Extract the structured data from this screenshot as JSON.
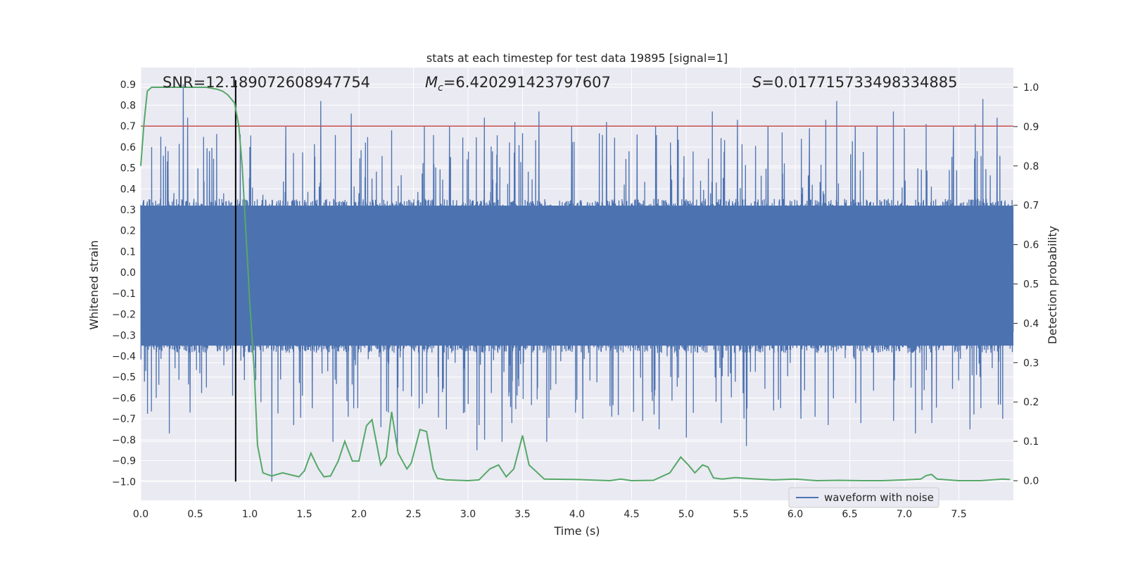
{
  "chart_data": {
    "type": "line",
    "title": "stats at each timestep for test data 19895 [signal=1]",
    "xlabel": "Time (s)",
    "ylabel": "Whitened strain",
    "y2label": "Detection probability",
    "xlim": [
      0.0,
      8.0
    ],
    "ylim": [
      -1.09,
      0.98
    ],
    "y2lim": [
      -0.05,
      1.05
    ],
    "xticks": [
      "0.0",
      "0.5",
      "1.0",
      "1.5",
      "2.0",
      "2.5",
      "3.0",
      "3.5",
      "4.0",
      "4.5",
      "5.0",
      "5.5",
      "6.0",
      "6.5",
      "7.0",
      "7.5"
    ],
    "xtick_values": [
      0.0,
      0.5,
      1.0,
      1.5,
      2.0,
      2.5,
      3.0,
      3.5,
      4.0,
      4.5,
      5.0,
      5.5,
      6.0,
      6.5,
      7.0,
      7.5
    ],
    "yticks": [
      "0.9",
      "0.8",
      "0.7",
      "0.6",
      "0.5",
      "0.4",
      "0.3",
      "0.2",
      "0.1",
      "0.0",
      "−0.1",
      "−0.2",
      "−0.3",
      "−0.4",
      "−0.5",
      "−0.6",
      "−0.7",
      "−0.8",
      "−0.9",
      "−1.0"
    ],
    "ytick_values": [
      0.9,
      0.8,
      0.7,
      0.6,
      0.5,
      0.4,
      0.3,
      0.2,
      0.1,
      0.0,
      -0.1,
      -0.2,
      -0.3,
      -0.4,
      -0.5,
      -0.6,
      -0.7,
      -0.8,
      -0.9,
      -1.0
    ],
    "y2ticks": [
      "1.0",
      "0.9",
      "0.8",
      "0.7",
      "0.6",
      "0.5",
      "0.4",
      "0.3",
      "0.2",
      "0.1",
      "0.0"
    ],
    "y2tick_values": [
      1.0,
      0.9,
      0.8,
      0.7,
      0.6,
      0.5,
      0.4,
      0.3,
      0.2,
      0.1,
      0.0
    ],
    "legend": {
      "placement": "bottom-right",
      "entries": [
        "waveform with noise"
      ]
    },
    "grid": true,
    "annotations": {
      "snr": "SNR=12.189072608947754",
      "mc_symbol": "M",
      "mc_sub": "c",
      "mc_value": "=6.420291423797607",
      "s_symbol": "S",
      "s_value": "=0.017715733498334885"
    },
    "threshold": {
      "y": 0.7,
      "color": "#c44e52"
    },
    "event_time": 0.87,
    "series": [
      {
        "name": "waveform with noise",
        "color": "#4c72b0",
        "axis": "left",
        "description": "whitened strain noise, band roughly -0.35..0.32 with spikes",
        "num_samples": 4000,
        "band": [
          -0.35,
          0.32
        ],
        "peaks": [
          [
            0.39,
            0.9
          ],
          [
            0.43,
            0.74
          ],
          [
            0.1,
            0.6
          ],
          [
            0.25,
            0.58
          ],
          [
            0.63,
            0.58
          ],
          [
            1.0,
            0.6
          ],
          [
            1.65,
            0.82
          ],
          [
            1.33,
            0.7
          ],
          [
            1.93,
            0.76
          ],
          [
            2.3,
            0.68
          ],
          [
            2.6,
            0.7
          ],
          [
            2.83,
            0.7
          ],
          [
            3.15,
            0.74
          ],
          [
            3.43,
            0.72
          ],
          [
            3.65,
            0.77
          ],
          [
            3.95,
            0.7
          ],
          [
            4.27,
            0.72
          ],
          [
            4.55,
            0.66
          ],
          [
            4.72,
            0.7
          ],
          [
            4.92,
            0.7
          ],
          [
            5.24,
            0.77
          ],
          [
            5.47,
            0.73
          ],
          [
            5.75,
            0.7
          ],
          [
            5.88,
            0.67
          ],
          [
            6.13,
            0.69
          ],
          [
            6.28,
            0.73
          ],
          [
            6.38,
            0.82
          ],
          [
            6.55,
            0.7
          ],
          [
            6.75,
            0.7
          ],
          [
            6.9,
            0.77
          ],
          [
            7.0,
            0.69
          ],
          [
            7.2,
            0.71
          ],
          [
            7.45,
            0.7
          ],
          [
            7.65,
            0.71
          ],
          [
            7.72,
            0.83
          ],
          [
            7.85,
            0.74
          ]
        ],
        "troughs": [
          [
            0.26,
            -0.77
          ],
          [
            0.45,
            -0.67
          ],
          [
            0.14,
            -0.6
          ],
          [
            0.6,
            -0.55
          ],
          [
            1.2,
            -1.0
          ],
          [
            1.1,
            -0.62
          ],
          [
            1.4,
            -0.73
          ],
          [
            1.57,
            -0.65
          ],
          [
            1.76,
            -0.81
          ],
          [
            1.9,
            -0.69
          ],
          [
            1.95,
            -0.65
          ],
          [
            2.2,
            -0.74
          ],
          [
            2.35,
            -0.84
          ],
          [
            2.55,
            -0.65
          ],
          [
            2.8,
            -0.75
          ],
          [
            3.08,
            -0.85
          ],
          [
            3.15,
            -0.8
          ],
          [
            3.1,
            -0.73
          ],
          [
            3.31,
            -0.81
          ],
          [
            3.4,
            -0.72
          ],
          [
            3.72,
            -0.81
          ],
          [
            4.05,
            -0.7
          ],
          [
            4.3,
            -0.64
          ],
          [
            4.6,
            -0.71
          ],
          [
            4.75,
            -0.75
          ],
          [
            5.0,
            -0.79
          ],
          [
            5.32,
            -0.72
          ],
          [
            5.55,
            -0.83
          ],
          [
            5.8,
            -0.66
          ],
          [
            6.05,
            -0.7
          ],
          [
            6.3,
            -0.73
          ],
          [
            6.6,
            -0.72
          ],
          [
            6.9,
            -0.71
          ],
          [
            7.1,
            -0.77
          ],
          [
            7.25,
            -0.72
          ],
          [
            7.6,
            -0.75
          ],
          [
            7.9,
            -0.7
          ]
        ]
      },
      {
        "name": "detection probability",
        "color": "#55a868",
        "axis": "right",
        "x": [
          0.0,
          0.03,
          0.06,
          0.1,
          0.2,
          0.3,
          0.4,
          0.5,
          0.6,
          0.7,
          0.75,
          0.8,
          0.86,
          0.9,
          0.93,
          0.97,
          1.0,
          1.04,
          1.07,
          1.12,
          1.2,
          1.3,
          1.45,
          1.5,
          1.56,
          1.63,
          1.68,
          1.74,
          1.81,
          1.87,
          1.94,
          2.0,
          2.07,
          2.12,
          2.2,
          2.25,
          2.3,
          2.36,
          2.44,
          2.48,
          2.56,
          2.62,
          2.68,
          2.72,
          2.8,
          3.0,
          3.1,
          3.2,
          3.28,
          3.35,
          3.42,
          3.5,
          3.56,
          3.7,
          4.0,
          4.3,
          4.4,
          4.5,
          4.7,
          4.85,
          4.95,
          5.02,
          5.08,
          5.15,
          5.2,
          5.25,
          5.33,
          5.45,
          5.6,
          5.8,
          6.0,
          6.2,
          6.4,
          6.6,
          6.8,
          7.0,
          7.15,
          7.2,
          7.25,
          7.3,
          7.5,
          7.7,
          7.9,
          7.97
        ],
        "y": [
          0.8,
          0.91,
          0.99,
          1.0,
          1.0,
          1.0,
          1.0,
          1.0,
          1.0,
          0.995,
          0.99,
          0.98,
          0.96,
          0.9,
          0.8,
          0.6,
          0.45,
          0.28,
          0.09,
          0.02,
          0.012,
          0.02,
          0.01,
          0.025,
          0.07,
          0.03,
          0.01,
          0.012,
          0.05,
          0.1,
          0.05,
          0.05,
          0.14,
          0.155,
          0.04,
          0.06,
          0.175,
          0.07,
          0.03,
          0.045,
          0.13,
          0.125,
          0.03,
          0.006,
          0.002,
          0.0,
          0.002,
          0.03,
          0.04,
          0.01,
          0.03,
          0.115,
          0.04,
          0.004,
          0.003,
          0.0,
          0.004,
          0.0,
          0.001,
          0.02,
          0.06,
          0.04,
          0.02,
          0.04,
          0.035,
          0.007,
          0.004,
          0.008,
          0.005,
          0.002,
          0.004,
          0.0,
          0.001,
          0.0,
          0.0,
          0.002,
          0.004,
          0.013,
          0.016,
          0.004,
          0.0,
          0.0,
          0.004,
          0.003
        ]
      }
    ]
  }
}
